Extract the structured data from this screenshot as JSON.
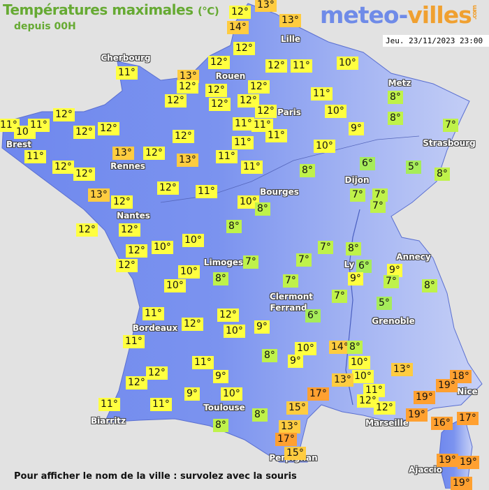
{
  "header": {
    "title": "Températures maximales",
    "unit": "(°C)",
    "subtitle": "depuis 00H",
    "logo_main": "meteo-",
    "logo_accent": "villes",
    "logo_suffix": ".com",
    "datetime": "Jeu. 23/11/2023 23:00"
  },
  "footer": "Pour afficher le nom de la ville : survolez avec la souris",
  "colors": {
    "land_west": "#6f88ee",
    "land_east": "#b4c2f4",
    "sea": "#e2e2e2",
    "cold": "#bff24a",
    "coldest": "#a6ec5a",
    "mild": "#ffff40",
    "warm": "#ffcc40",
    "hot": "#ffa030"
  },
  "cities": [
    "Cherbourg",
    "Lille",
    "Rouen",
    "Paris",
    "Metz",
    "Strasbourg",
    "Brest",
    "Rennes",
    "Nantes",
    "Bourges",
    "Dijon",
    "Limoges",
    "Ly",
    "Annecy",
    "Clermont",
    "Ferrand",
    "Grenoble",
    "Bordeaux",
    "Toulouse",
    "Biarritz",
    "Marseille",
    "Nice",
    "Perpignan",
    "Ajaccio"
  ],
  "temperatures": [
    "13°",
    "12°",
    "13°",
    "14°",
    "12°",
    "11°",
    "13°",
    "12°",
    "12°",
    "12°",
    "11°",
    "10°",
    "12°",
    "12°",
    "12°",
    "12°",
    "12°",
    "11°",
    "8°",
    "12°",
    "10°",
    "8°",
    "12°",
    "11°",
    "10°",
    "11°",
    "12°",
    "12°",
    "11°",
    "11°",
    "11°",
    "9°",
    "7°",
    "12°",
    "11°",
    "10°",
    "13°",
    "12°",
    "13°",
    "11°",
    "11°",
    "12°",
    "12°",
    "11°",
    "8°",
    "6°",
    "5°",
    "8°",
    "12°",
    "11°",
    "7°",
    "7°",
    "7°",
    "13°",
    "12°",
    "10°",
    "8°",
    "8°",
    "12°",
    "12°",
    "10°",
    "10°",
    "12°",
    "7°",
    "8°",
    "12°",
    "7°",
    "7°",
    "6°",
    "9°",
    "10°",
    "9°",
    "7°",
    "8°",
    "10°",
    "8°",
    "7°",
    "7°",
    "5°",
    "11°",
    "12°",
    "6°",
    "12°",
    "9°",
    "10°",
    "11°",
    "10°",
    "14°",
    "8°",
    "8°",
    "9°",
    "11°",
    "10°",
    "13°",
    "12°",
    "9°",
    "10°",
    "12°",
    "13°",
    "18°",
    "19°",
    "9°",
    "10°",
    "17°",
    "11°",
    "19°",
    "12°",
    "11°",
    "11°",
    "12°",
    "15°",
    "8°",
    "19°",
    "16°",
    "17°",
    "8°",
    "13°",
    "17°",
    "15°",
    "19°",
    "19°",
    "19°"
  ]
}
